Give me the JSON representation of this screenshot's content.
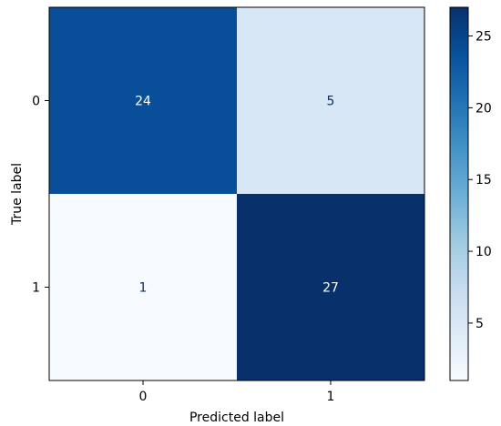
{
  "chart_data": {
    "type": "heatmap",
    "xlabel": "Predicted label",
    "ylabel": "True label",
    "x_categories": [
      "0",
      "1"
    ],
    "y_categories": [
      "0",
      "1"
    ],
    "values": [
      [
        24,
        5
      ],
      [
        1,
        27
      ]
    ],
    "colormap": "Blues",
    "color_range": [
      1,
      27
    ],
    "colorbar_ticks": [
      5,
      10,
      15,
      20,
      25
    ],
    "light_text_color": "#ffffff",
    "dark_text_color": "#08306b",
    "frame_color": "#000000"
  }
}
